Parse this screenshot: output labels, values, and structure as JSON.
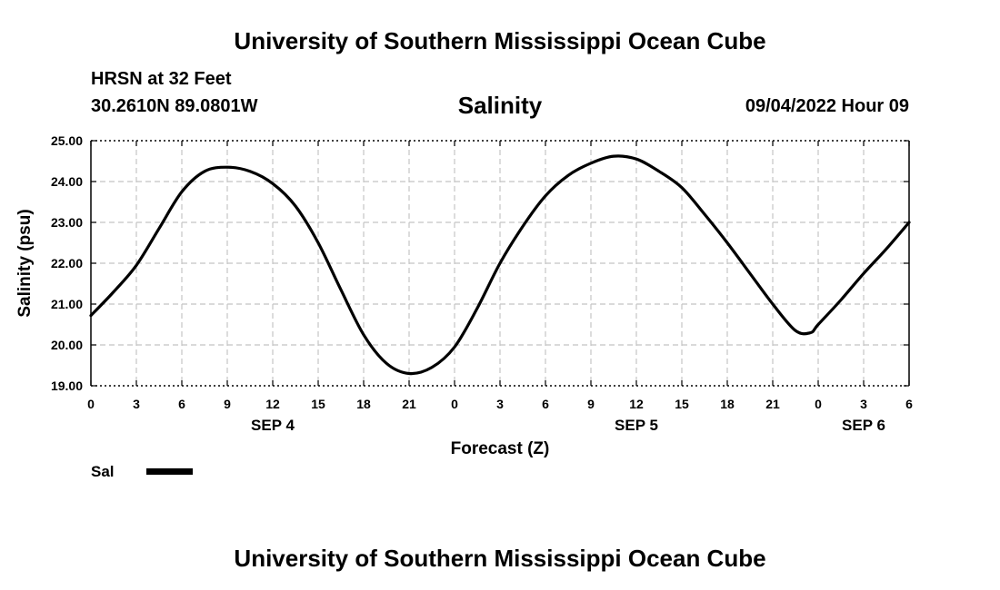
{
  "header": {
    "title": "University of Southern Mississippi Ocean Cube",
    "station": "HRSN at 32 Feet",
    "coordinates": "30.2610N  89.0801W",
    "chart_title": "Salinity",
    "datetime": "09/04/2022 Hour 09"
  },
  "footer": {
    "title": "University of Southern Mississippi Ocean Cube"
  },
  "legend": {
    "label": "Sal",
    "color": "#000000"
  },
  "chart_data": {
    "type": "line",
    "title": "Salinity",
    "xlabel": "Forecast (Z)",
    "ylabel": "Salinity (psu)",
    "xlim": [
      0,
      54
    ],
    "ylim": [
      19,
      25
    ],
    "grid": true,
    "legend_position": "bottom-left",
    "y_ticks": [
      "19.00",
      "20.00",
      "21.00",
      "22.00",
      "23.00",
      "24.00",
      "25.00"
    ],
    "y_tick_values": [
      19,
      20,
      21,
      22,
      23,
      24,
      25
    ],
    "x_ticks": [
      "0",
      "3",
      "6",
      "9",
      "12",
      "15",
      "18",
      "21",
      "0",
      "3",
      "6",
      "9",
      "12",
      "15",
      "18",
      "21",
      "0",
      "3",
      "6"
    ],
    "x_tick_hours": [
      0,
      3,
      6,
      9,
      12,
      15,
      18,
      21,
      24,
      27,
      30,
      33,
      36,
      39,
      42,
      45,
      48,
      51,
      54
    ],
    "date_labels": [
      {
        "text": "SEP 4",
        "hour": 12
      },
      {
        "text": "SEP 5",
        "hour": 36
      },
      {
        "text": "SEP 6",
        "hour": 51
      }
    ],
    "series": [
      {
        "name": "Sal",
        "x": [
          0,
          1.5,
          3,
          4.5,
          6,
          7.5,
          9,
          10.5,
          12,
          13.5,
          15,
          16.5,
          18,
          19.5,
          21,
          22.5,
          24,
          25.5,
          27,
          28.5,
          30,
          31.5,
          33,
          34.5,
          36,
          37.5,
          39,
          40.5,
          42,
          43.5,
          45,
          46.5,
          47.5,
          48,
          49.5,
          51,
          52.5,
          54
        ],
        "values": [
          20.72,
          21.3,
          21.95,
          22.85,
          23.75,
          24.25,
          24.35,
          24.25,
          23.95,
          23.4,
          22.5,
          21.35,
          20.25,
          19.55,
          19.3,
          19.45,
          19.95,
          20.9,
          22.0,
          22.9,
          23.65,
          24.15,
          24.45,
          24.62,
          24.55,
          24.25,
          23.85,
          23.2,
          22.5,
          21.75,
          21.0,
          20.35,
          20.3,
          20.5,
          21.1,
          21.75,
          22.35,
          23.0
        ]
      }
    ]
  }
}
